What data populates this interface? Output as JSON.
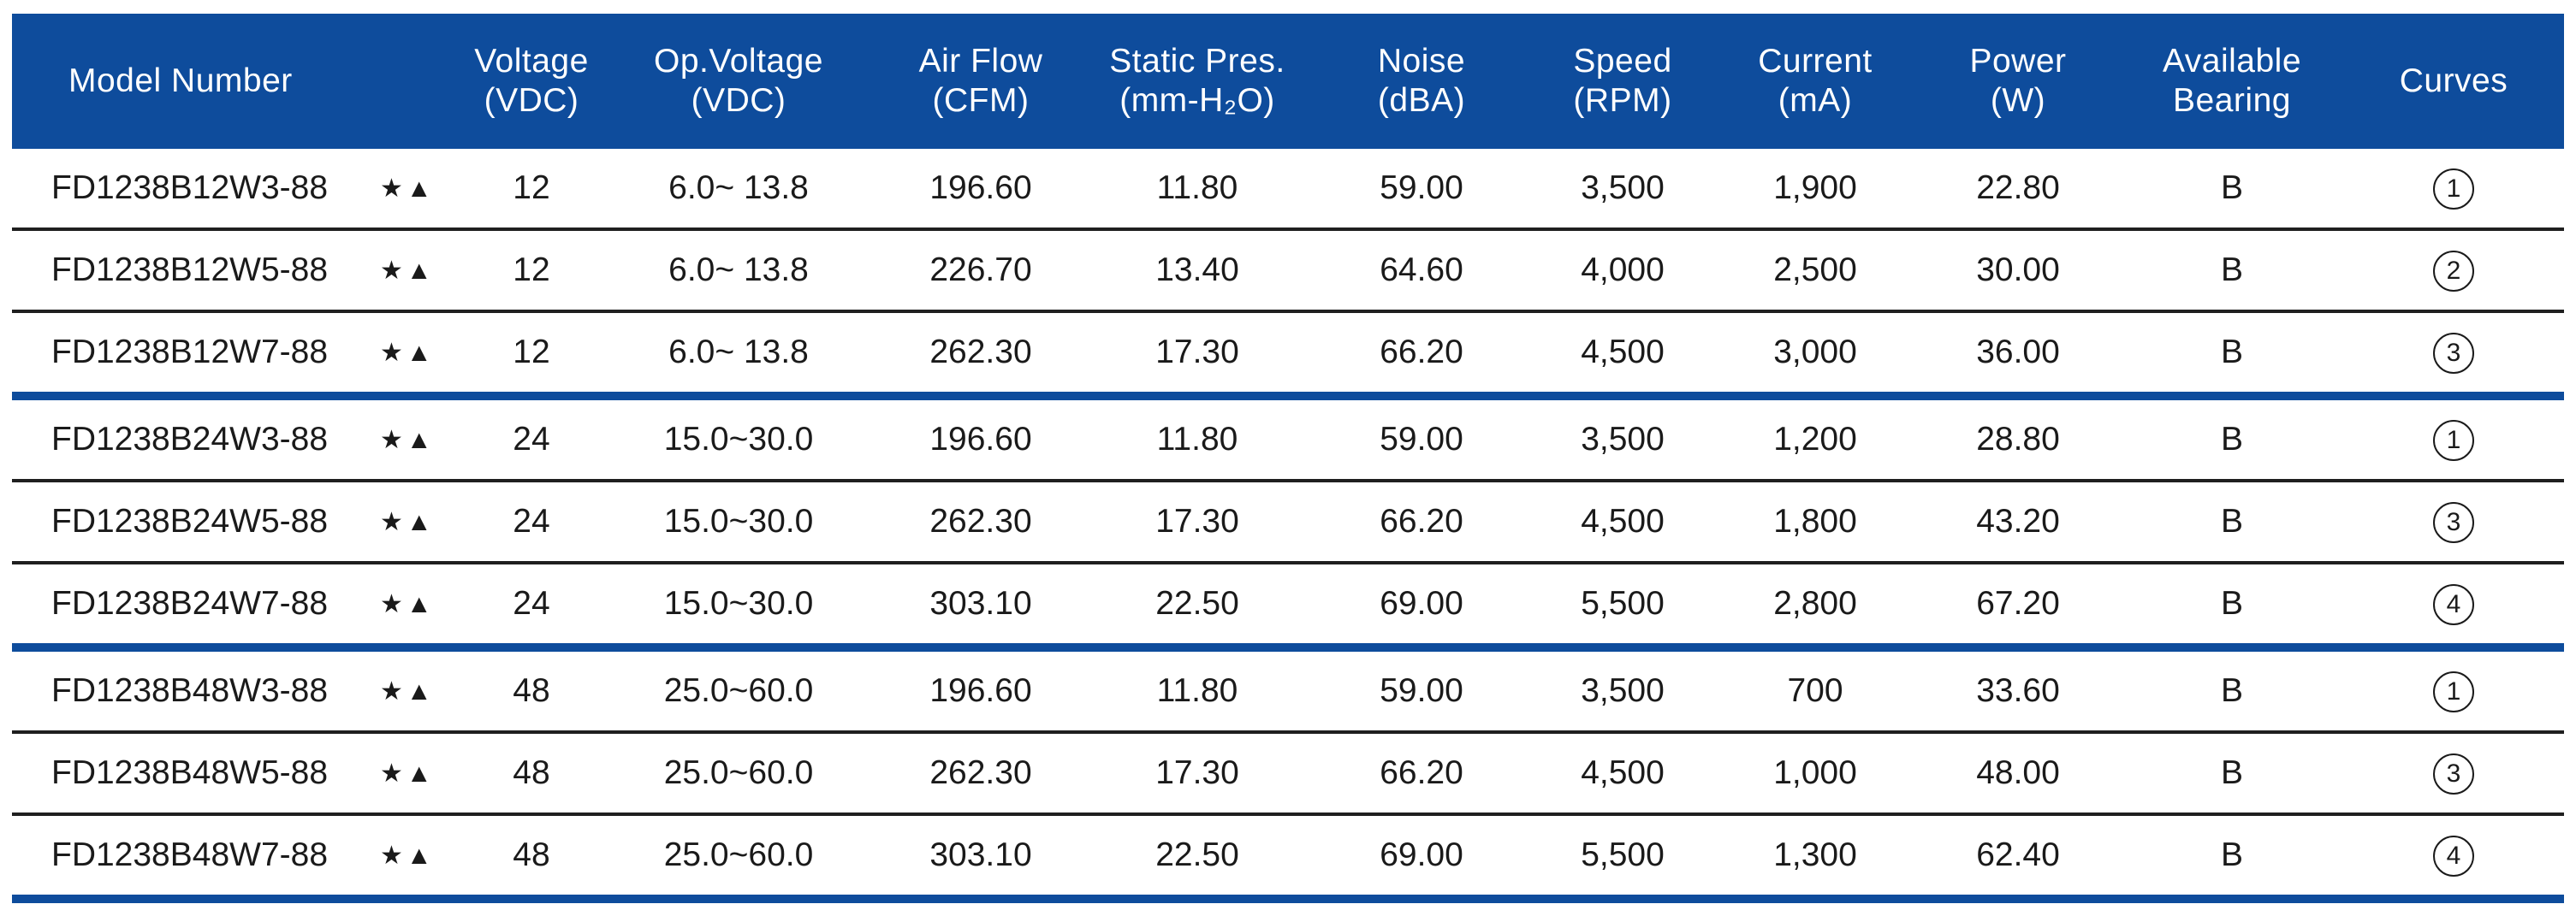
{
  "header": {
    "model": "Model Number",
    "voltage": [
      "Voltage",
      "(VDC)"
    ],
    "op_voltage": [
      "Op.Voltage",
      "(VDC)"
    ],
    "airflow": [
      "Air Flow",
      "(CFM)"
    ],
    "static_pres": [
      "Static Pres.",
      "(mm-H₂O)"
    ],
    "noise": [
      "Noise",
      "(dBA)"
    ],
    "speed": [
      "Speed",
      "(RPM)"
    ],
    "current": [
      "Current",
      "(mA)"
    ],
    "power": [
      "Power",
      "(W)"
    ],
    "bearing": [
      "Available",
      "Bearing"
    ],
    "curves": "Curves"
  },
  "rows": [
    {
      "model": "FD1238B12W3-88",
      "marks": "★▲",
      "voltage": "12",
      "op_voltage": "6.0~ 13.8",
      "airflow": "196.60",
      "static_pres": "11.80",
      "noise": "59.00",
      "speed": "3,500",
      "current": "1,900",
      "power": "22.80",
      "bearing": "B",
      "curve": "1"
    },
    {
      "model": "FD1238B12W5-88",
      "marks": "★▲",
      "voltage": "12",
      "op_voltage": "6.0~ 13.8",
      "airflow": "226.70",
      "static_pres": "13.40",
      "noise": "64.60",
      "speed": "4,000",
      "current": "2,500",
      "power": "30.00",
      "bearing": "B",
      "curve": "2"
    },
    {
      "model": "FD1238B12W7-88",
      "marks": "★▲",
      "voltage": "12",
      "op_voltage": "6.0~ 13.8",
      "airflow": "262.30",
      "static_pres": "17.30",
      "noise": "66.20",
      "speed": "4,500",
      "current": "3,000",
      "power": "36.00",
      "bearing": "B",
      "curve": "3"
    },
    {
      "model": "FD1238B24W3-88",
      "marks": "★▲",
      "voltage": "24",
      "op_voltage": "15.0~30.0",
      "airflow": "196.60",
      "static_pres": "11.80",
      "noise": "59.00",
      "speed": "3,500",
      "current": "1,200",
      "power": "28.80",
      "bearing": "B",
      "curve": "1"
    },
    {
      "model": "FD1238B24W5-88",
      "marks": "★▲",
      "voltage": "24",
      "op_voltage": "15.0~30.0",
      "airflow": "262.30",
      "static_pres": "17.30",
      "noise": "66.20",
      "speed": "4,500",
      "current": "1,800",
      "power": "43.20",
      "bearing": "B",
      "curve": "3"
    },
    {
      "model": "FD1238B24W7-88",
      "marks": "★▲",
      "voltage": "24",
      "op_voltage": "15.0~30.0",
      "airflow": "303.10",
      "static_pres": "22.50",
      "noise": "69.00",
      "speed": "5,500",
      "current": "2,800",
      "power": "67.20",
      "bearing": "B",
      "curve": "4"
    },
    {
      "model": "FD1238B48W3-88",
      "marks": "★▲",
      "voltage": "48",
      "op_voltage": "25.0~60.0",
      "airflow": "196.60",
      "static_pres": "11.80",
      "noise": "59.00",
      "speed": "3,500",
      "current": "700",
      "power": "33.60",
      "bearing": "B",
      "curve": "1"
    },
    {
      "model": "FD1238B48W5-88",
      "marks": "★▲",
      "voltage": "48",
      "op_voltage": "25.0~60.0",
      "airflow": "262.30",
      "static_pres": "17.30",
      "noise": "66.20",
      "speed": "4,500",
      "current": "1,000",
      "power": "48.00",
      "bearing": "B",
      "curve": "3"
    },
    {
      "model": "FD1238B48W7-88",
      "marks": "★▲",
      "voltage": "48",
      "op_voltage": "25.0~60.0",
      "airflow": "303.10",
      "static_pres": "22.50",
      "noise": "69.00",
      "speed": "5,500",
      "current": "1,300",
      "power": "62.40",
      "bearing": "B",
      "curve": "4"
    }
  ],
  "colors": {
    "header_bg": "#0e4c9c",
    "group_rule": "#0e4c9c",
    "row_rule": "#1f1f1f",
    "header_text": "#ffffff"
  }
}
